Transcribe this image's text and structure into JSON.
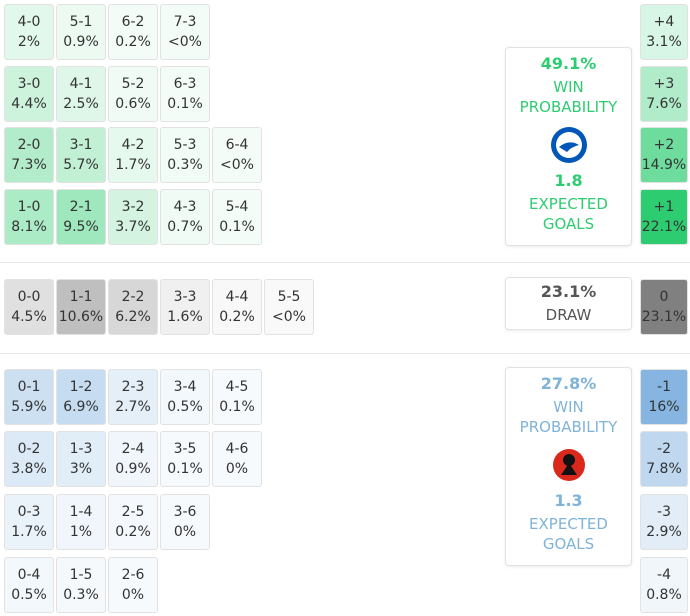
{
  "home": {
    "color": "#2ecc71",
    "rows": [
      [
        {
          "score": "4-0",
          "pct": "2%"
        },
        {
          "score": "5-1",
          "pct": "0.9%"
        },
        {
          "score": "6-2",
          "pct": "0.2%"
        },
        {
          "score": "7-3",
          "pct": "<0%"
        }
      ],
      [
        {
          "score": "3-0",
          "pct": "4.4%"
        },
        {
          "score": "4-1",
          "pct": "2.5%"
        },
        {
          "score": "5-2",
          "pct": "0.6%"
        },
        {
          "score": "6-3",
          "pct": "0.1%"
        }
      ],
      [
        {
          "score": "2-0",
          "pct": "7.3%"
        },
        {
          "score": "3-1",
          "pct": "5.7%"
        },
        {
          "score": "4-2",
          "pct": "1.7%"
        },
        {
          "score": "5-3",
          "pct": "0.3%"
        },
        {
          "score": "6-4",
          "pct": "<0%"
        }
      ],
      [
        {
          "score": "1-0",
          "pct": "8.1%"
        },
        {
          "score": "2-1",
          "pct": "9.5%"
        },
        {
          "score": "3-2",
          "pct": "3.7%"
        },
        {
          "score": "4-3",
          "pct": "0.7%"
        },
        {
          "score": "5-4",
          "pct": "0.1%"
        }
      ]
    ],
    "diffs": [
      {
        "label": "+4",
        "pct": "3.1%"
      },
      {
        "label": "+3",
        "pct": "7.6%"
      },
      {
        "label": "+2",
        "pct": "14.9%"
      },
      {
        "label": "+1",
        "pct": "22.1%"
      }
    ],
    "win_probability": "49.1%",
    "win_label": "WIN PROBABILITY",
    "expected_goals": "1.8",
    "xg_label": "EXPECTED GOALS"
  },
  "draw": {
    "color": "#808080",
    "rows": [
      [
        {
          "score": "0-0",
          "pct": "4.5%"
        },
        {
          "score": "1-1",
          "pct": "10.6%"
        },
        {
          "score": "2-2",
          "pct": "6.2%"
        },
        {
          "score": "3-3",
          "pct": "1.6%"
        },
        {
          "score": "4-4",
          "pct": "0.2%"
        },
        {
          "score": "5-5",
          "pct": "<0%"
        }
      ]
    ],
    "diffs": [
      {
        "label": "0",
        "pct": "23.1%"
      }
    ],
    "probability": "23.1%",
    "label": "DRAW"
  },
  "away": {
    "color": "#5b9bd5",
    "rows": [
      [
        {
          "score": "0-1",
          "pct": "5.9%"
        },
        {
          "score": "1-2",
          "pct": "6.9%"
        },
        {
          "score": "2-3",
          "pct": "2.7%"
        },
        {
          "score": "3-4",
          "pct": "0.5%"
        },
        {
          "score": "4-5",
          "pct": "0.1%"
        }
      ],
      [
        {
          "score": "0-2",
          "pct": "3.8%"
        },
        {
          "score": "1-3",
          "pct": "3%"
        },
        {
          "score": "2-4",
          "pct": "0.9%"
        },
        {
          "score": "3-5",
          "pct": "0.1%"
        },
        {
          "score": "4-6",
          "pct": "0%"
        }
      ],
      [
        {
          "score": "0-3",
          "pct": "1.7%"
        },
        {
          "score": "1-4",
          "pct": "1%"
        },
        {
          "score": "2-5",
          "pct": "0.2%"
        },
        {
          "score": "3-6",
          "pct": "0%"
        }
      ],
      [
        {
          "score": "0-4",
          "pct": "0.5%"
        },
        {
          "score": "1-5",
          "pct": "0.3%"
        },
        {
          "score": "2-6",
          "pct": "0%"
        }
      ]
    ],
    "diffs": [
      {
        "label": "-1",
        "pct": "16%"
      },
      {
        "label": "-2",
        "pct": "7.8%"
      },
      {
        "label": "-3",
        "pct": "2.9%"
      },
      {
        "label": "-4",
        "pct": "0.8%"
      }
    ],
    "win_probability": "27.8%",
    "win_label": "WIN PROBABILITY",
    "expected_goals": "1.3",
    "xg_label": "EXPECTED GOALS"
  }
}
